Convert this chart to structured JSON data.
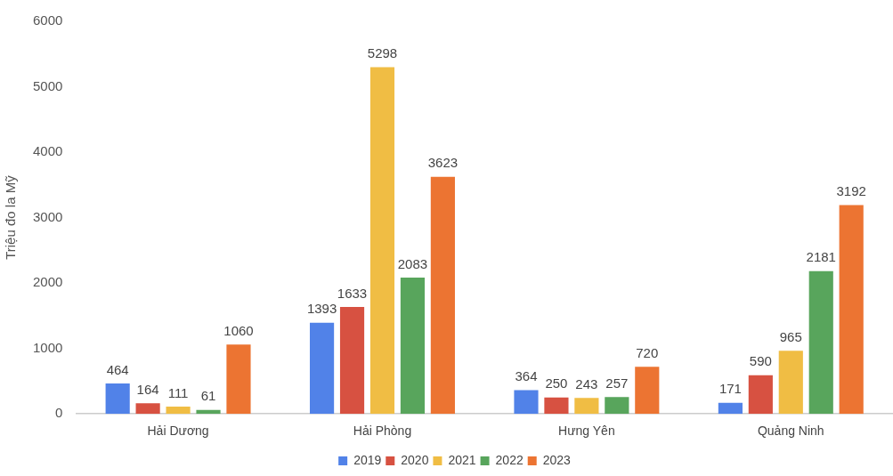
{
  "chart_data": {
    "type": "bar",
    "ylabel": "Triệu đo la Mỹ",
    "categories": [
      "Hải Dương",
      "Hải Phòng",
      "Hưng Yên",
      "Quảng Ninh"
    ],
    "series": [
      {
        "name": "2019",
        "color": "#5182e8",
        "values": [
          464,
          1393,
          364,
          171
        ]
      },
      {
        "name": "2020",
        "color": "#d75141",
        "values": [
          164,
          1633,
          250,
          590
        ]
      },
      {
        "name": "2021",
        "color": "#f0bd44",
        "values": [
          111,
          5298,
          243,
          965
        ]
      },
      {
        "name": "2022",
        "color": "#58a55c",
        "values": [
          61,
          2083,
          257,
          2181
        ]
      },
      {
        "name": "2023",
        "color": "#ec7432",
        "values": [
          1060,
          3623,
          720,
          3192
        ]
      }
    ],
    "ylim": [
      0,
      6000
    ],
    "yticks": [
      0,
      1000,
      2000,
      3000,
      4000,
      5000,
      6000
    ],
    "grid": false,
    "legend": "bottom",
    "data_labels": true
  }
}
